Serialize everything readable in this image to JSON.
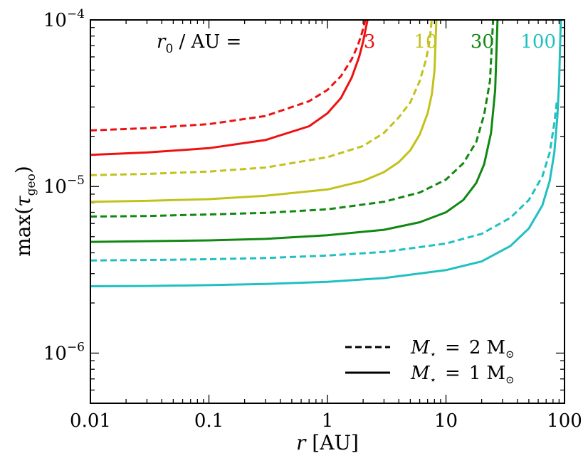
{
  "chart_data": {
    "type": "line",
    "xscale": "log",
    "yscale": "log",
    "xlim": [
      0.01,
      100
    ],
    "ylim": [
      5e-07,
      0.0001
    ],
    "xlabel": "r [AU]",
    "ylabel": "max(τgeo)",
    "x_ticks": [
      {
        "value": 0.01,
        "label": "0.01"
      },
      {
        "value": 0.1,
        "label": "0.1"
      },
      {
        "value": 1,
        "label": "1"
      },
      {
        "value": 10,
        "label": "10"
      },
      {
        "value": 100,
        "label": "100"
      }
    ],
    "y_ticks": [
      {
        "value": 1e-06,
        "base": "10",
        "exp": "−6"
      },
      {
        "value": 1e-05,
        "base": "10",
        "exp": "−5"
      },
      {
        "value": 0.0001,
        "base": "10",
        "exp": "−4"
      }
    ],
    "annotation": {
      "prefix": "r",
      "prefix_sub": "0",
      "rest": " / AU ="
    },
    "r0_labels": [
      {
        "text": "3",
        "color": "#ee1111",
        "x": 3
      },
      {
        "text": "10",
        "color": "#c2c21a",
        "x": 10
      },
      {
        "text": "30",
        "color": "#118811",
        "x": 30
      },
      {
        "text": "100",
        "color": "#20c0c0",
        "x": 100
      }
    ],
    "legend": {
      "position": "lower-right",
      "entries": [
        {
          "style": "dashed",
          "symbol": "M",
          "sub": "⋆",
          "eq": "=",
          "value": "2",
          "unit": "M",
          "unit_sub": "⊙"
        },
        {
          "style": "solid",
          "symbol": "M",
          "sub": "⋆",
          "eq": "=",
          "value": "1",
          "unit": "M",
          "unit_sub": "⊙"
        }
      ]
    },
    "series": [
      {
        "r0": 3,
        "mass": 2,
        "style": "dashed",
        "color": "#ee1111",
        "x": [
          0.01,
          0.03,
          0.1,
          0.3,
          0.7,
          1.0,
          1.3,
          1.6,
          1.8,
          1.95,
          2.05,
          2.1
        ],
        "y": [
          2.17e-05,
          2.24e-05,
          2.37e-05,
          2.65e-05,
          3.25e-05,
          3.8e-05,
          4.6e-05,
          5.8e-05,
          7e-05,
          8.3e-05,
          9.5e-05,
          0.000102
        ]
      },
      {
        "r0": 3,
        "mass": 1,
        "style": "solid",
        "color": "#ee1111",
        "x": [
          0.01,
          0.03,
          0.1,
          0.3,
          0.7,
          1.0,
          1.3,
          1.6,
          1.85,
          2.0,
          2.1,
          2.2
        ],
        "y": [
          1.55e-05,
          1.6e-05,
          1.7e-05,
          1.9e-05,
          2.3e-05,
          2.75e-05,
          3.4e-05,
          4.5e-05,
          6e-05,
          7.4e-05,
          8.8e-05,
          0.000103
        ]
      },
      {
        "r0": 10,
        "mass": 2,
        "style": "dashed",
        "color": "#c2c21a",
        "x": [
          0.01,
          0.03,
          0.1,
          0.3,
          1.0,
          2.0,
          3.0,
          4.0,
          5.0,
          6.0,
          6.8,
          7.3,
          7.6
        ],
        "y": [
          1.17e-05,
          1.19e-05,
          1.23e-05,
          1.3e-05,
          1.5e-05,
          1.75e-05,
          2.1e-05,
          2.6e-05,
          3.2e-05,
          4.3e-05,
          5.8e-05,
          7.6e-05,
          0.000102
        ]
      },
      {
        "r0": 10,
        "mass": 1,
        "style": "solid",
        "color": "#c2c21a",
        "x": [
          0.01,
          0.03,
          0.1,
          0.3,
          1.0,
          2.0,
          3.0,
          4.0,
          5.0,
          6.0,
          7.0,
          7.6,
          8.0,
          8.3
        ],
        "y": [
          8.1e-06,
          8.2e-06,
          8.4e-06,
          8.8e-06,
          9.6e-06,
          1.08e-05,
          1.22e-05,
          1.4e-05,
          1.65e-05,
          2.05e-05,
          2.75e-05,
          3.6e-05,
          5e-05,
          0.0001
        ]
      },
      {
        "r0": 30,
        "mass": 2,
        "style": "dashed",
        "color": "#118811",
        "x": [
          0.01,
          0.03,
          0.1,
          0.3,
          1.0,
          3.0,
          6.0,
          10.0,
          14.0,
          18.0,
          21.0,
          23.5,
          25.0
        ],
        "y": [
          6.6e-06,
          6.65e-06,
          6.8e-06,
          6.95e-06,
          7.3e-06,
          8.1e-06,
          9.2e-06,
          1.1e-05,
          1.38e-05,
          1.85e-05,
          2.7e-05,
          4.3e-05,
          0.000102
        ]
      },
      {
        "r0": 30,
        "mass": 1,
        "style": "solid",
        "color": "#118811",
        "x": [
          0.01,
          0.03,
          0.1,
          0.3,
          1.0,
          3.0,
          6.0,
          10.0,
          14.0,
          18.0,
          21.0,
          24.0,
          26.0,
          27.2
        ],
        "y": [
          4.65e-06,
          4.7e-06,
          4.75e-06,
          4.85e-06,
          5.1e-06,
          5.5e-06,
          6.1e-06,
          7e-06,
          8.3e-06,
          1.05e-05,
          1.36e-05,
          2.1e-05,
          3.8e-05,
          0.0001
        ]
      },
      {
        "r0": 100,
        "mass": 2,
        "style": "dashed",
        "color": "#20c0c0",
        "x": [
          0.01,
          0.03,
          0.1,
          0.3,
          1.0,
          3.0,
          10.0,
          20.0,
          35.0,
          50.0,
          65.0,
          75.0,
          82.0,
          86.0
        ],
        "y": [
          3.6e-06,
          3.62e-06,
          3.66e-06,
          3.72e-06,
          3.85e-06,
          4.05e-06,
          4.55e-06,
          5.2e-06,
          6.5e-06,
          8.3e-06,
          1.15e-05,
          1.6e-05,
          2.4e-05,
          3.2e-05
        ]
      },
      {
        "r0": 100,
        "mass": 1,
        "style": "solid",
        "color": "#20c0c0",
        "x": [
          0.01,
          0.03,
          0.1,
          0.3,
          1.0,
          3.0,
          10.0,
          20.0,
          35.0,
          50.0,
          65.0,
          75.0,
          82.0,
          87.0,
          90.0,
          93.0
        ],
        "y": [
          2.52e-06,
          2.53e-06,
          2.56e-06,
          2.6e-06,
          2.68e-06,
          2.82e-06,
          3.15e-06,
          3.55e-06,
          4.4e-06,
          5.6e-06,
          7.7e-06,
          1.08e-05,
          1.6e-05,
          2.6e-05,
          4.2e-05,
          0.0001
        ]
      }
    ]
  }
}
